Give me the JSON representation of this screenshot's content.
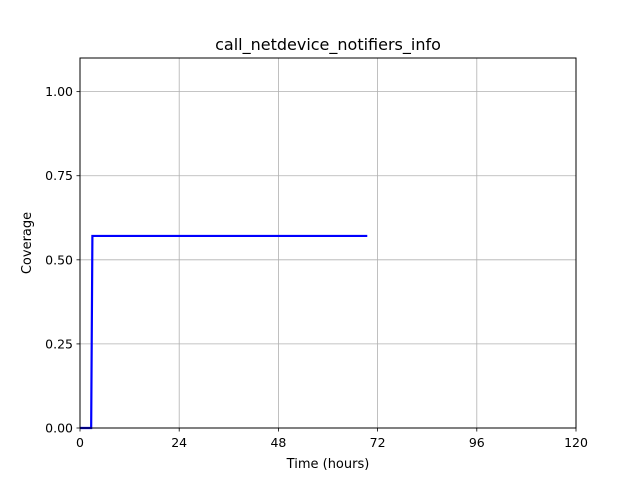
{
  "chart_data": {
    "type": "line",
    "title": "call_netdevice_notifiers_info",
    "xlabel": "Time (hours)",
    "ylabel": "Coverage",
    "xlim": [
      0,
      120
    ],
    "ylim": [
      0,
      1.1
    ],
    "x_ticks": [
      "0",
      "24",
      "48",
      "72",
      "96",
      "120"
    ],
    "y_ticks": [
      "0.00",
      "0.25",
      "0.50",
      "0.75",
      "1.00"
    ],
    "grid": true,
    "line_color": "#0000ff",
    "series": [
      {
        "x": [
          0,
          2.7,
          3.0,
          69.5
        ],
        "y": [
          0,
          0,
          0.571,
          0.571
        ]
      }
    ]
  }
}
